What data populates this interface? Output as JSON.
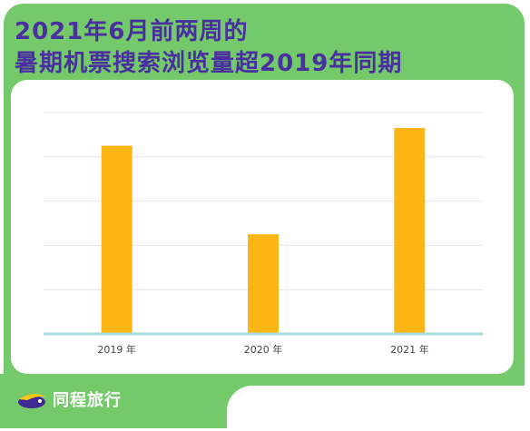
{
  "title": {
    "line1": "2021年6月前两周的",
    "line2": "暑期机票搜索浏览量超2019年同期"
  },
  "brand": {
    "name": "同程旅行",
    "icon": "tongcheng-logo-icon"
  },
  "colors": {
    "background": "#74c96b",
    "title": "#4a2fa0",
    "bar": "#fbb514",
    "baseline": "#a6dcd9",
    "grid": "#e4e4e4",
    "tick_label": "#444444"
  },
  "chart_data": {
    "type": "bar",
    "categories": [
      "2019 年",
      "2020 年",
      "2021 年"
    ],
    "values": [
      85,
      45,
      93
    ],
    "title": "2021年6月前两周的暑期机票搜索浏览量超2019年同期",
    "xlabel": "",
    "ylabel": "",
    "ylim": [
      0,
      100
    ],
    "grid": true,
    "y_axis_labels_shown": false,
    "legend": "none"
  }
}
